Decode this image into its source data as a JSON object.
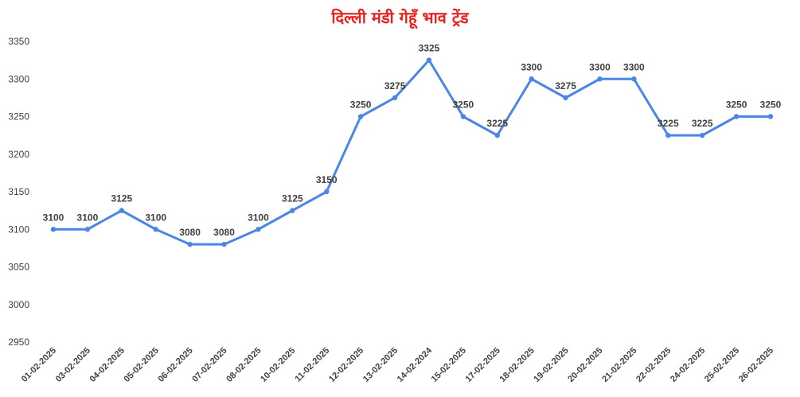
{
  "chart_data": {
    "type": "line",
    "title": "दिल्ली मंडी गेहूँ भाव ट्रेंड",
    "xlabel": "",
    "ylabel": "",
    "categories": [
      "01-02-2025",
      "03-02-2025",
      "04-02-2025",
      "05-02-2025",
      "06-02-2025",
      "07-02-2025",
      "08-02-2025",
      "10-02-2025",
      "11-02-2025",
      "12-02-2025",
      "13-02-2025",
      "14-02-2024",
      "15-02-2025",
      "17-02-2025",
      "18-02-2025",
      "19-02-2025",
      "20-02-2025",
      "21-02-2025",
      "22-02-2025",
      "24-02-2025",
      "25-02-2025",
      "26-02-2025"
    ],
    "values": [
      3100,
      3100,
      3125,
      3100,
      3080,
      3080,
      3100,
      3125,
      3150,
      3250,
      3275,
      3325,
      3250,
      3225,
      3300,
      3275,
      3300,
      3300,
      3225,
      3225,
      3250,
      3250
    ],
    "ylim": [
      2950,
      3350
    ],
    "yticks": [
      2950,
      3000,
      3050,
      3100,
      3150,
      3200,
      3250,
      3300,
      3350
    ],
    "grid": false,
    "legend": "none",
    "line_color": "#4a86e8",
    "title_color": "#e8201e"
  }
}
